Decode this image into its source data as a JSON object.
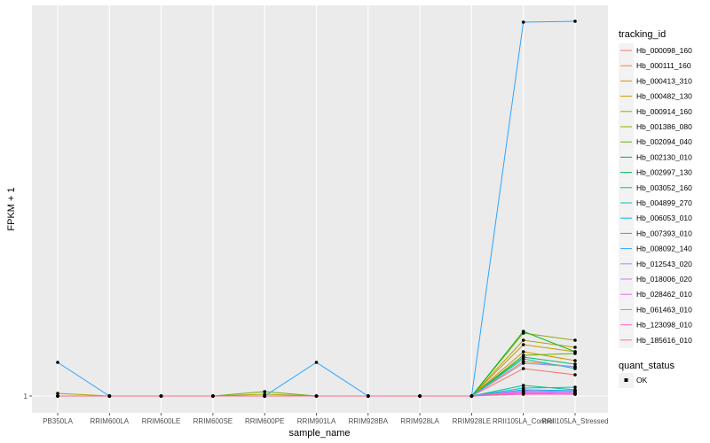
{
  "chart_data": {
    "type": "line",
    "xlabel": "sample_name",
    "ylabel": "FPKM + 1",
    "y_tick_labels": [
      "1"
    ],
    "categories": [
      "PB350LA",
      "RRIM600LA",
      "RRIM600LE",
      "RRIM600SE",
      "RRIM600PE",
      "RRIM901LA",
      "RRIM928BA",
      "RRIM928LA",
      "RRIM928LE",
      "RRII105LA_Control",
      "RRII105LA_Stressed"
    ],
    "grid": true,
    "colors": {
      "panel_bg": "#ebebeb",
      "grid": "#ffffff",
      "point": "#000000"
    },
    "legend": {
      "position": "right",
      "title": "tracking_id",
      "status_title": "quant_status",
      "status_items": [
        "OK"
      ]
    },
    "series": [
      {
        "name": "Hb_000098_160",
        "color": "#F8766D",
        "values": [
          1,
          1,
          1,
          1,
          1,
          1,
          1,
          1,
          1,
          1.31,
          1.24
        ]
      },
      {
        "name": "Hb_000111_160",
        "color": "#EC8239",
        "values": [
          1,
          1,
          1,
          1,
          1,
          1,
          1,
          1,
          1,
          1.39,
          1.33
        ]
      },
      {
        "name": "Hb_000413_310",
        "color": "#DB8E00",
        "values": [
          1,
          1,
          1,
          1,
          1,
          1,
          1,
          1,
          1,
          1.5,
          1.4
        ]
      },
      {
        "name": "Hb_000482_130",
        "color": "#C79800",
        "values": [
          1,
          1,
          1,
          1,
          1,
          1,
          1,
          1,
          1,
          1.58,
          1.5
        ]
      },
      {
        "name": "Hb_000914_160",
        "color": "#AEA200",
        "values": [
          1.03,
          1,
          1,
          1,
          1.02,
          1,
          1,
          1,
          1,
          1.63,
          1.55
        ]
      },
      {
        "name": "Hb_001386_080",
        "color": "#8FAA00",
        "values": [
          1,
          1,
          1,
          1,
          1,
          1,
          1,
          1,
          1,
          1.71,
          1.63
        ]
      },
      {
        "name": "Hb_002094_040",
        "color": "#64B200",
        "values": [
          1,
          1,
          1,
          1,
          1.05,
          1,
          1,
          1,
          1,
          1.46,
          1.48
        ]
      },
      {
        "name": "Hb_002130_010",
        "color": "#00B81B",
        "values": [
          1,
          1,
          1,
          1,
          1,
          1,
          1,
          1,
          1,
          1.73,
          1.5
        ]
      },
      {
        "name": "Hb_002997_130",
        "color": "#00BD5C",
        "values": [
          1,
          1,
          1,
          1,
          1,
          1,
          1,
          1,
          1,
          1.44,
          1.36
        ]
      },
      {
        "name": "Hb_003052_160",
        "color": "#00C08E",
        "values": [
          1,
          1,
          1,
          1,
          1,
          1,
          1,
          1,
          1,
          1.12,
          1.07
        ]
      },
      {
        "name": "Hb_004899_270",
        "color": "#00C1B7",
        "values": [
          1,
          1,
          1,
          1,
          1,
          1,
          1,
          1,
          1,
          1.42,
          1.31
        ]
      },
      {
        "name": "Hb_006053_010",
        "color": "#00BDD4",
        "values": [
          1,
          1,
          1,
          1,
          1,
          1,
          1,
          1,
          1,
          1.09,
          1.1
        ]
      },
      {
        "name": "Hb_007393_010",
        "color": "#00B5EE",
        "values": [
          1,
          1,
          1,
          1,
          1,
          1,
          1,
          1,
          1,
          1.07,
          1.06
        ]
      },
      {
        "name": "Hb_008092_140",
        "color": "#2FA4FF",
        "values": [
          1.38,
          1,
          1,
          1,
          1,
          1.38,
          1,
          1,
          1,
          5.22,
          5.23
        ]
      },
      {
        "name": "Hb_012543_020",
        "color": "#8F94FF",
        "values": [
          1,
          1,
          1,
          1,
          1,
          1,
          1,
          1,
          1,
          1.37,
          1.33
        ]
      },
      {
        "name": "Hb_018006_020",
        "color": "#C77CFF",
        "values": [
          1,
          1,
          1,
          1,
          1,
          1,
          1,
          1,
          1,
          1.05,
          1.04
        ]
      },
      {
        "name": "Hb_028462_010",
        "color": "#E36EF6",
        "values": [
          1,
          1,
          1,
          1,
          1,
          1,
          1,
          1,
          1,
          1.06,
          1.05
        ]
      },
      {
        "name": "Hb_061463_010",
        "color": "#F564E3",
        "values": [
          1,
          1,
          1,
          1,
          1,
          1,
          1,
          1,
          1,
          1.04,
          1.03
        ]
      },
      {
        "name": "Hb_123098_010",
        "color": "#FF61C3",
        "values": [
          1,
          1,
          1,
          1,
          1,
          1,
          1,
          1,
          1,
          1.02,
          1.02
        ]
      },
      {
        "name": "Hb_185616_010",
        "color": "#FF6C91",
        "values": [
          1,
          1,
          1,
          1,
          1,
          1,
          1,
          1,
          1,
          1.03,
          1.02
        ]
      }
    ]
  }
}
